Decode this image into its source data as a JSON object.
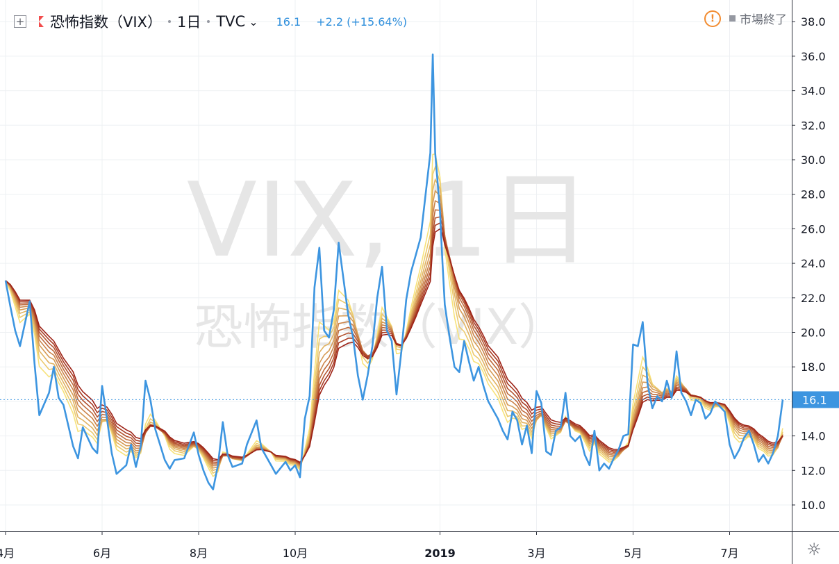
{
  "header": {
    "symbol_name": "恐怖指数（VIX）",
    "interval": "1日",
    "exchange": "TVC",
    "last": "16.1",
    "change": "+2.2 (+15.64%)",
    "market_status": "市場終了"
  },
  "watermark": {
    "line1": "VIX, 1日",
    "line2": "恐怖指数（VIX）"
  },
  "price_label": "16.1",
  "colors": {
    "series": "#3d95e0",
    "accent": "#f28b2f",
    "ribbon_fast": "#f7e27a",
    "ribbon_slow": "#9e2418"
  },
  "chart_data": {
    "type": "line",
    "title": "恐怖指数（VIX）",
    "y_range": [
      9,
      39
    ],
    "y_ticks": [
      "10.0",
      "12.0",
      "14.0",
      "16.0",
      "18.0",
      "20.0",
      "22.0",
      "24.0",
      "26.0",
      "28.0",
      "30.0",
      "32.0",
      "34.0",
      "36.0",
      "38.0"
    ],
    "x_ticks": [
      "4月",
      "6月",
      "8月",
      "10月",
      "2019",
      "3月",
      "5月",
      "7月"
    ],
    "x_range": [
      0,
      16.2
    ],
    "x_tick_positions": [
      0,
      2.0,
      4.0,
      6.0,
      9.0,
      11.0,
      13.0,
      15.0
    ],
    "grid": true,
    "series": [
      {
        "name": "VIX",
        "points": [
          [
            0.0,
            23.0
          ],
          [
            0.1,
            21.5
          ],
          [
            0.2,
            20.1
          ],
          [
            0.3,
            19.2
          ],
          [
            0.5,
            21.8
          ],
          [
            0.6,
            18.2
          ],
          [
            0.7,
            15.2
          ],
          [
            0.9,
            16.5
          ],
          [
            1.0,
            18.0
          ],
          [
            1.1,
            16.2
          ],
          [
            1.2,
            15.8
          ],
          [
            1.4,
            13.4
          ],
          [
            1.5,
            12.7
          ],
          [
            1.6,
            14.5
          ],
          [
            1.8,
            13.3
          ],
          [
            1.9,
            13.0
          ],
          [
            2.0,
            16.9
          ],
          [
            2.1,
            15.0
          ],
          [
            2.2,
            13.0
          ],
          [
            2.3,
            11.8
          ],
          [
            2.5,
            12.3
          ],
          [
            2.6,
            13.5
          ],
          [
            2.7,
            12.2
          ],
          [
            2.8,
            13.4
          ],
          [
            2.9,
            17.2
          ],
          [
            3.0,
            16.1
          ],
          [
            3.1,
            14.4
          ],
          [
            3.3,
            12.6
          ],
          [
            3.4,
            12.1
          ],
          [
            3.5,
            12.6
          ],
          [
            3.7,
            12.7
          ],
          [
            3.9,
            14.2
          ],
          [
            4.0,
            12.9
          ],
          [
            4.1,
            12.0
          ],
          [
            4.2,
            11.3
          ],
          [
            4.3,
            10.9
          ],
          [
            4.4,
            12.3
          ],
          [
            4.5,
            14.8
          ],
          [
            4.6,
            12.9
          ],
          [
            4.7,
            12.2
          ],
          [
            4.9,
            12.4
          ],
          [
            5.0,
            13.5
          ],
          [
            5.2,
            14.9
          ],
          [
            5.3,
            13.3
          ],
          [
            5.5,
            12.3
          ],
          [
            5.6,
            11.8
          ],
          [
            5.8,
            12.5
          ],
          [
            5.9,
            12.0
          ],
          [
            6.0,
            12.3
          ],
          [
            6.1,
            11.6
          ],
          [
            6.2,
            15.0
          ],
          [
            6.3,
            16.3
          ],
          [
            6.4,
            22.6
          ],
          [
            6.5,
            24.9
          ],
          [
            6.6,
            20.1
          ],
          [
            6.7,
            19.7
          ],
          [
            6.8,
            21.3
          ],
          [
            6.9,
            25.2
          ],
          [
            7.1,
            21.0
          ],
          [
            7.2,
            19.7
          ],
          [
            7.3,
            17.5
          ],
          [
            7.4,
            16.1
          ],
          [
            7.5,
            17.5
          ],
          [
            7.6,
            19.2
          ],
          [
            7.7,
            22.0
          ],
          [
            7.8,
            23.8
          ],
          [
            7.9,
            20.1
          ],
          [
            8.0,
            19.5
          ],
          [
            8.1,
            16.4
          ],
          [
            8.2,
            18.9
          ],
          [
            8.3,
            21.9
          ],
          [
            8.4,
            23.5
          ],
          [
            8.5,
            24.5
          ],
          [
            8.6,
            25.5
          ],
          [
            8.8,
            30.4
          ],
          [
            8.85,
            36.1
          ],
          [
            8.9,
            30.4
          ],
          [
            9.0,
            27.0
          ],
          [
            9.05,
            24.1
          ],
          [
            9.1,
            21.6
          ],
          [
            9.2,
            19.7
          ],
          [
            9.3,
            18.0
          ],
          [
            9.4,
            17.7
          ],
          [
            9.5,
            19.5
          ],
          [
            9.6,
            18.3
          ],
          [
            9.7,
            17.2
          ],
          [
            9.8,
            18.0
          ],
          [
            9.9,
            16.9
          ],
          [
            10.0,
            16.0
          ],
          [
            10.2,
            15.0
          ],
          [
            10.3,
            14.3
          ],
          [
            10.4,
            13.8
          ],
          [
            10.5,
            15.4
          ],
          [
            10.6,
            14.9
          ],
          [
            10.7,
            13.5
          ],
          [
            10.8,
            14.6
          ],
          [
            10.9,
            13.0
          ],
          [
            11.0,
            16.6
          ],
          [
            11.1,
            15.9
          ],
          [
            11.2,
            13.1
          ],
          [
            11.3,
            12.9
          ],
          [
            11.4,
            14.3
          ],
          [
            11.5,
            14.5
          ],
          [
            11.6,
            16.5
          ],
          [
            11.7,
            14.0
          ],
          [
            11.8,
            13.7
          ],
          [
            11.9,
            14.0
          ],
          [
            12.0,
            12.9
          ],
          [
            12.1,
            12.3
          ],
          [
            12.2,
            14.3
          ],
          [
            12.3,
            12.0
          ],
          [
            12.4,
            12.4
          ],
          [
            12.5,
            12.1
          ],
          [
            12.6,
            12.7
          ],
          [
            12.7,
            13.2
          ],
          [
            12.8,
            14.0
          ],
          [
            12.9,
            14.1
          ],
          [
            13.0,
            19.3
          ],
          [
            13.1,
            19.2
          ],
          [
            13.2,
            20.6
          ],
          [
            13.3,
            17.0
          ],
          [
            13.4,
            15.6
          ],
          [
            13.5,
            16.3
          ],
          [
            13.6,
            16.0
          ],
          [
            13.7,
            17.2
          ],
          [
            13.8,
            16.2
          ],
          [
            13.9,
            18.9
          ],
          [
            14.0,
            16.5
          ],
          [
            14.1,
            16.0
          ],
          [
            14.2,
            15.2
          ],
          [
            14.3,
            16.1
          ],
          [
            14.4,
            15.9
          ],
          [
            14.5,
            15.0
          ],
          [
            14.6,
            15.3
          ],
          [
            14.7,
            16.0
          ],
          [
            14.8,
            15.7
          ],
          [
            14.9,
            15.4
          ],
          [
            15.0,
            13.5
          ],
          [
            15.1,
            12.7
          ],
          [
            15.2,
            13.2
          ],
          [
            15.3,
            13.9
          ],
          [
            15.4,
            14.3
          ],
          [
            15.5,
            13.5
          ],
          [
            15.6,
            12.5
          ],
          [
            15.7,
            12.9
          ],
          [
            15.8,
            12.4
          ],
          [
            15.9,
            13.0
          ],
          [
            16.0,
            14.0
          ],
          [
            16.1,
            16.1
          ]
        ]
      }
    ]
  }
}
